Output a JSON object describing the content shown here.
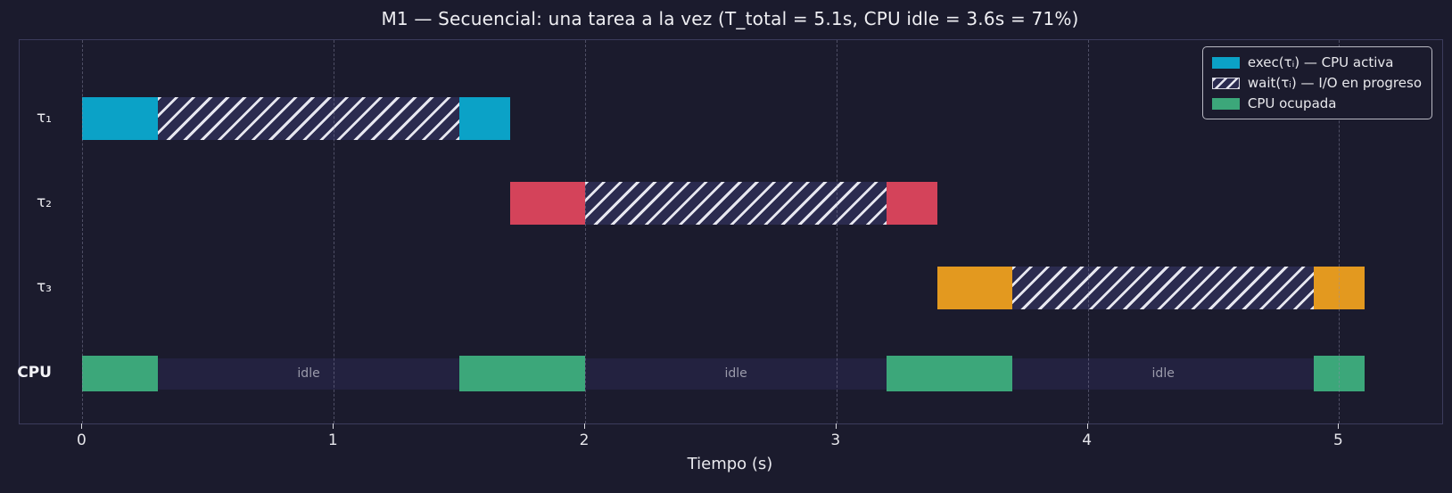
{
  "colors": {
    "background": "#1b1b2d",
    "frame": "#3c3c5c",
    "exec_tau1": "#0ba2c7",
    "exec_tau2": "#d4435a",
    "exec_tau3": "#e3991f",
    "cpu_busy": "#3ca77a",
    "wait_base": "#2b2b4f",
    "wait_stripe": "#e7e7f0",
    "idle_band": "#232240",
    "idle_text": "#9b9bab",
    "grid": "rgba(145,145,170,0.45)",
    "text": "#e6e6eb"
  },
  "chart_data": {
    "type": "gantt",
    "title": "M1 — Secuencial: una tarea a la vez  (T_total = 5.1s,  CPU idle = 3.6s = 71%)",
    "xlabel": "Tiempo (s)",
    "x_ticks": [
      0,
      1,
      2,
      3,
      4,
      5
    ],
    "xlim": [
      -0.25,
      5.41
    ],
    "grid": "vertical-dashed",
    "t_total_s": 5.1,
    "cpu_idle_s": 3.6,
    "cpu_idle_pct": 71,
    "rows": [
      {
        "label": "τ₁",
        "bold": false,
        "color": "#0ba2c7",
        "segments": [
          {
            "kind": "exec",
            "t0": 0.0,
            "t1": 0.3
          },
          {
            "kind": "wait",
            "t0": 0.3,
            "t1": 1.5
          },
          {
            "kind": "exec",
            "t0": 1.5,
            "t1": 1.7
          }
        ]
      },
      {
        "label": "τ₂",
        "bold": false,
        "color": "#d4435a",
        "segments": [
          {
            "kind": "exec",
            "t0": 1.7,
            "t1": 2.0
          },
          {
            "kind": "wait",
            "t0": 2.0,
            "t1": 3.2
          },
          {
            "kind": "exec",
            "t0": 3.2,
            "t1": 3.4
          }
        ]
      },
      {
        "label": "τ₃",
        "bold": false,
        "color": "#e3991f",
        "segments": [
          {
            "kind": "exec",
            "t0": 3.4,
            "t1": 3.7
          },
          {
            "kind": "wait",
            "t0": 3.7,
            "t1": 4.9
          },
          {
            "kind": "exec",
            "t0": 4.9,
            "t1": 5.1
          }
        ]
      },
      {
        "label": "CPU",
        "bold": true,
        "color": "#3ca77a",
        "kind": "cpu",
        "busy": [
          [
            0.0,
            0.3
          ],
          [
            1.5,
            2.0
          ],
          [
            3.2,
            3.7
          ],
          [
            4.9,
            5.1
          ]
        ],
        "idle": [
          {
            "t0": 0.3,
            "t1": 1.5,
            "label": "idle"
          },
          {
            "t0": 2.0,
            "t1": 3.2,
            "label": "idle"
          },
          {
            "t0": 3.7,
            "t1": 4.9,
            "label": "idle"
          }
        ]
      }
    ],
    "legend": [
      {
        "swatch": "exec",
        "color": "#0ba2c7",
        "label": "exec(τᵢ) — CPU activa"
      },
      {
        "swatch": "wait",
        "color": "#2b2b4f",
        "label": "wait(τᵢ) — I/O en progreso"
      },
      {
        "swatch": "cpu",
        "color": "#3ca77a",
        "label": "CPU ocupada"
      }
    ]
  }
}
